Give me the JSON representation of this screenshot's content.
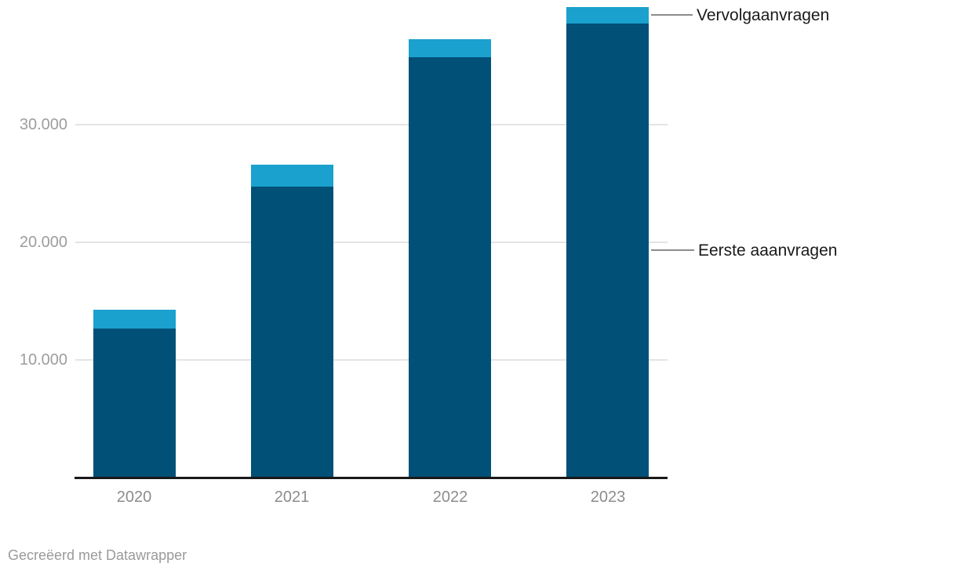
{
  "chart_data": {
    "type": "bar",
    "stacked": true,
    "title": "",
    "xlabel": "",
    "ylabel": "",
    "categories": [
      "2020",
      "2021",
      "2022",
      "2023"
    ],
    "series": [
      {
        "name": "Eerste aaanvragen",
        "color": "#005078",
        "values": [
          12650,
          24750,
          35750,
          38600
        ]
      },
      {
        "name": "Vervolgaanvragen",
        "color": "#1aa1cd",
        "values": [
          1600,
          1850,
          1550,
          1400
        ]
      }
    ],
    "ylim": [
      0,
      40000
    ],
    "yticks": [
      {
        "value": 10000,
        "label": "10.000"
      },
      {
        "value": 20000,
        "label": "20.000"
      },
      {
        "value": 30000,
        "label": "30.000"
      }
    ],
    "grid": true,
    "legend_position": "right-annotations",
    "annotations": [
      {
        "series": "Vervolgaanvragen",
        "label": "Vervolgaanvragen"
      },
      {
        "series": "Eerste aaanvragen",
        "label": "Eerste aaanvragen"
      }
    ]
  },
  "legend": {
    "vervolg_label": "Vervolgaanvragen",
    "eerste_label": "Eerste aaanvragen"
  },
  "footer": {
    "attribution": "Gecreëerd met Datawrapper"
  },
  "colors": {
    "eerste": "#005078",
    "vervolg": "#1aa1cd",
    "gridline": "#e4e4e4",
    "axis_line": "#191919",
    "tick_text": "#9d9d9d",
    "category_text": "#8c8c8c",
    "legend_text": "#1a1a1a",
    "footer_text": "#9a9a9a"
  }
}
